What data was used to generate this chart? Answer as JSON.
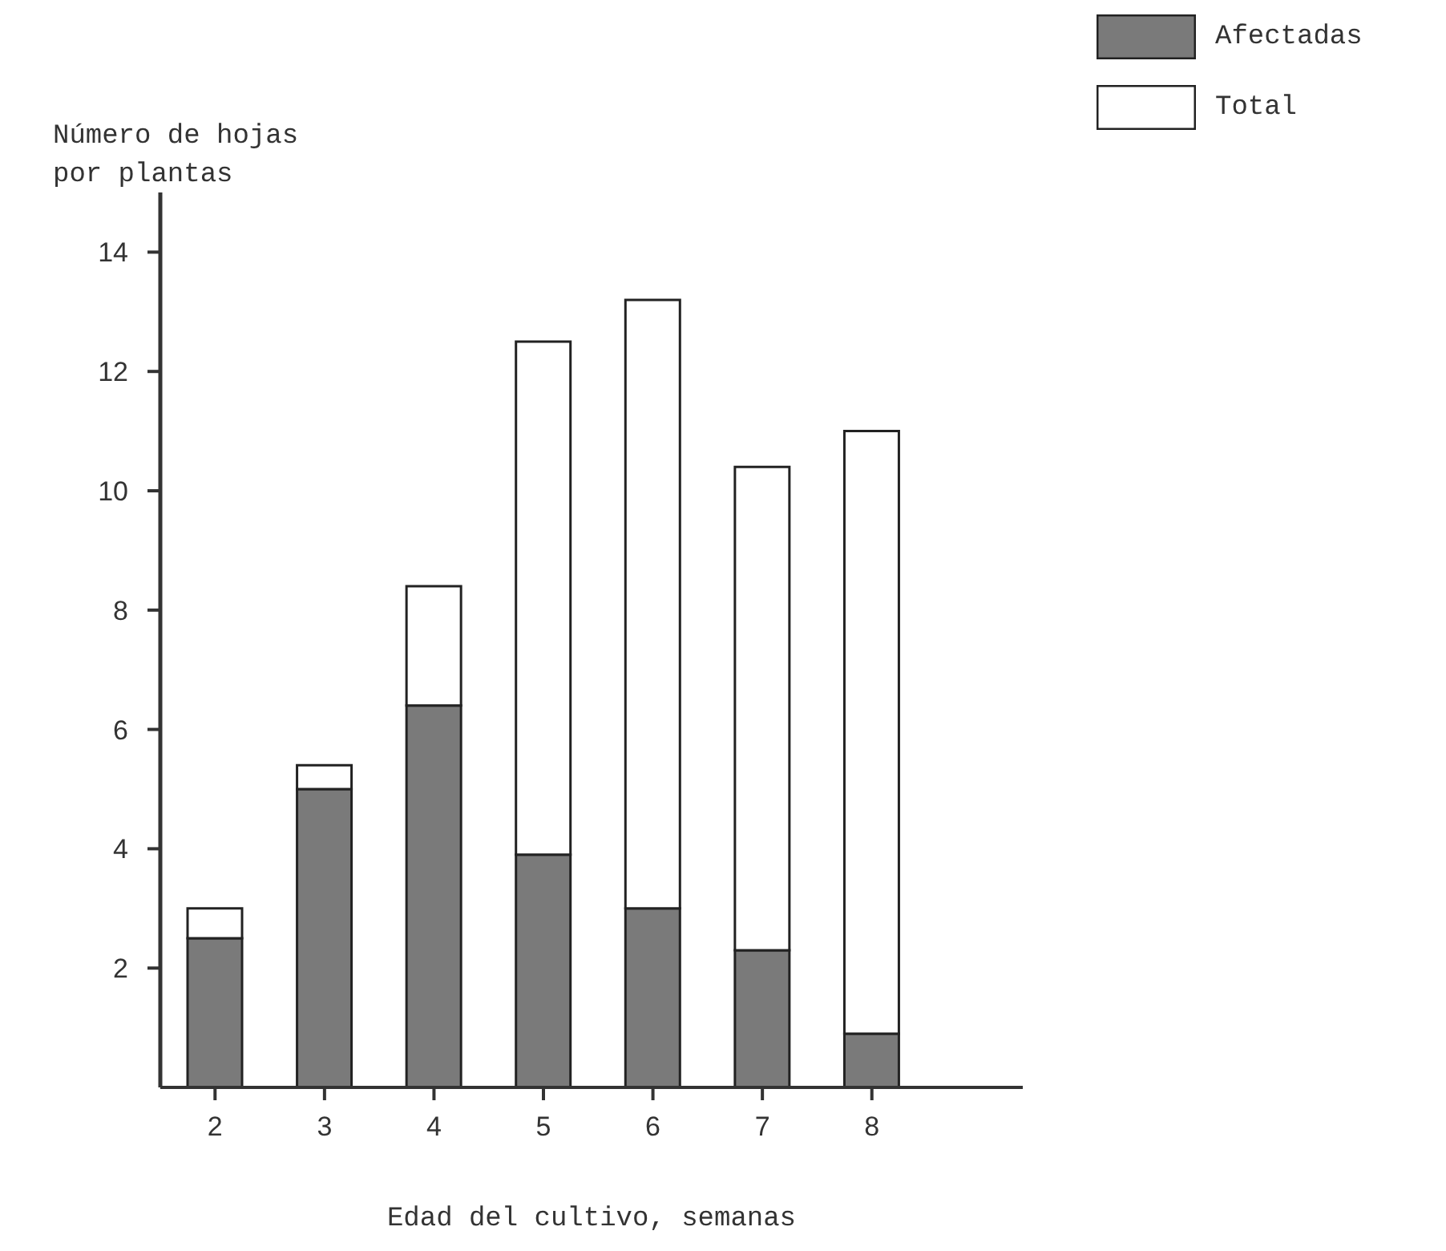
{
  "chart_data": {
    "type": "bar",
    "stacked": true,
    "xlabel": "Edad del cultivo, semanas",
    "ylabel": "Número de hojas\npor plantas",
    "categories": [
      "2",
      "3",
      "4",
      "5",
      "6",
      "7",
      "8"
    ],
    "series": [
      {
        "name": "Afectadas",
        "color": "#7a7a7a",
        "values": [
          2.5,
          5.0,
          6.4,
          3.9,
          3.0,
          2.3,
          0.9
        ]
      },
      {
        "name": "Total",
        "color": "#ffffff",
        "values": [
          0.5,
          0.4,
          2.0,
          8.6,
          10.2,
          8.1,
          10.1
        ]
      }
    ],
    "ylim": [
      0,
      15
    ],
    "yticks": [
      2,
      4,
      6,
      8,
      10,
      12,
      14
    ],
    "grid": false,
    "legend": "top right"
  }
}
